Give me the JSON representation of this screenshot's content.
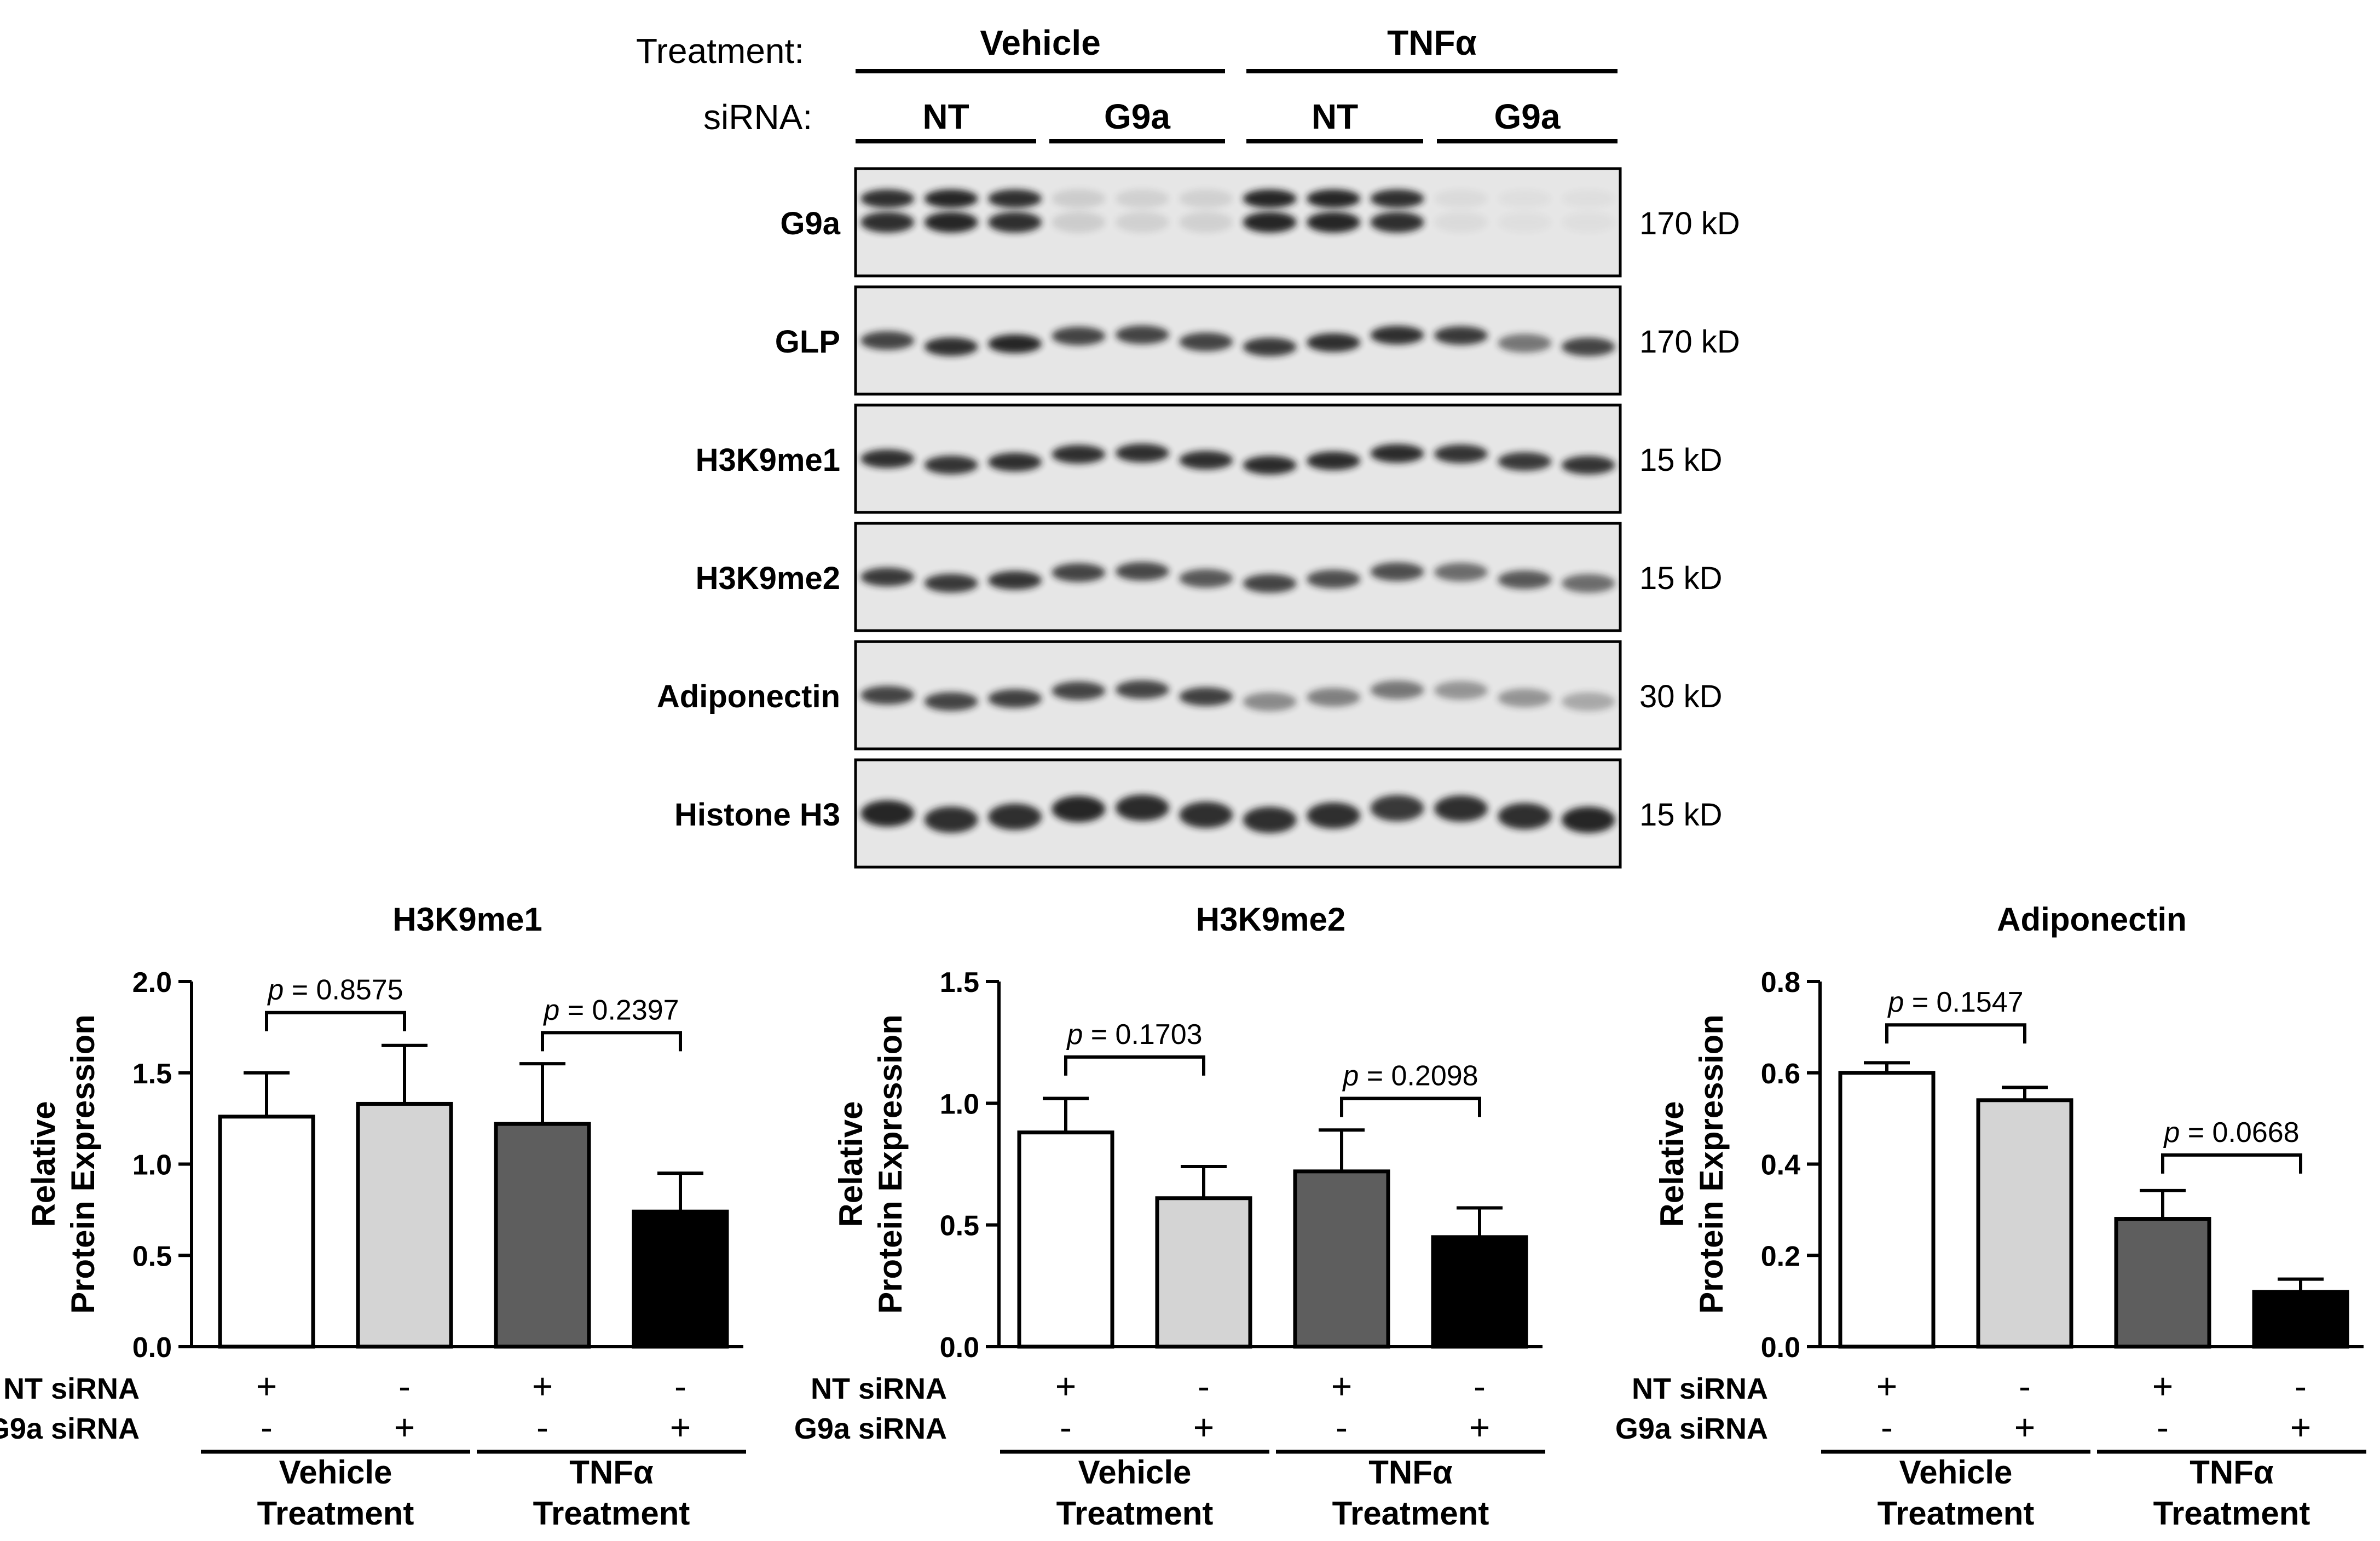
{
  "blot": {
    "treatment_label": "Treatment:",
    "sirna_label": "siRNA:",
    "treatments": [
      "Vehicle",
      "TNFα"
    ],
    "sirnas": [
      "NT",
      "G9a",
      "NT",
      "G9a"
    ],
    "rows": [
      {
        "name": "G9a",
        "size": "170 kD"
      },
      {
        "name": "GLP",
        "size": "170 kD"
      },
      {
        "name": "H3K9me1",
        "size": "15 kD"
      },
      {
        "name": "H3K9me2",
        "size": "15 kD"
      },
      {
        "name": "Adiponectin",
        "size": "30 kD"
      },
      {
        "name": "Histone H3",
        "size": "15 kD"
      }
    ],
    "intensities": [
      [
        0.9,
        0.95,
        0.9,
        0.12,
        0.1,
        0.1,
        0.95,
        0.95,
        0.9,
        0.05,
        0.03,
        0.03
      ],
      [
        0.8,
        0.9,
        0.95,
        0.8,
        0.8,
        0.8,
        0.85,
        0.9,
        0.9,
        0.85,
        0.55,
        0.8
      ],
      [
        0.9,
        0.88,
        0.9,
        0.9,
        0.9,
        0.9,
        0.92,
        0.92,
        0.92,
        0.88,
        0.85,
        0.88
      ],
      [
        0.85,
        0.85,
        0.88,
        0.8,
        0.78,
        0.7,
        0.8,
        0.75,
        0.75,
        0.6,
        0.7,
        0.6
      ],
      [
        0.8,
        0.8,
        0.82,
        0.8,
        0.8,
        0.82,
        0.45,
        0.5,
        0.55,
        0.4,
        0.4,
        0.3
      ],
      [
        0.95,
        0.9,
        0.9,
        0.95,
        0.92,
        0.9,
        0.9,
        0.9,
        0.85,
        0.9,
        0.9,
        0.95
      ]
    ]
  },
  "conditions": {
    "nt_label": "NT siRNA",
    "g9a_label": "G9a siRNA",
    "nt_signs": [
      "+",
      "-",
      "+",
      "-"
    ],
    "g9a_signs": [
      "-",
      "+",
      "-",
      "+"
    ],
    "groups": [
      {
        "line1": "Vehicle",
        "line2": "Treatment"
      },
      {
        "line1": "TNFα",
        "line2": "Treatment"
      }
    ]
  },
  "chart_data": [
    {
      "type": "bar",
      "title": "H3K9me1",
      "ylabel": [
        "Relative",
        "Protein Expression"
      ],
      "categories": [
        "NT siRNA + Vehicle",
        "G9a siRNA + Vehicle",
        "NT siRNA + TNFα",
        "G9a siRNA + TNFα"
      ],
      "values": [
        1.26,
        1.33,
        1.22,
        0.74
      ],
      "errors": [
        0.24,
        0.32,
        0.33,
        0.21
      ],
      "ylim": [
        0,
        2.0
      ],
      "yticks": [
        0.0,
        0.5,
        1.0,
        1.5,
        2.0
      ],
      "ytick_labels": [
        "0.0",
        "0.5",
        "1.0",
        "1.5",
        "2.0"
      ],
      "comparisons": [
        {
          "between": [
            0,
            1
          ],
          "p": "0.8575",
          "level": 1.83
        },
        {
          "between": [
            2,
            3
          ],
          "p": "0.2397",
          "level": 1.72
        }
      ]
    },
    {
      "type": "bar",
      "title": "H3K9me2",
      "ylabel": [
        "Relative",
        "Protein Expression"
      ],
      "categories": [
        "NT siRNA + Vehicle",
        "G9a siRNA + Vehicle",
        "NT siRNA + TNFα",
        "G9a siRNA + TNFα"
      ],
      "values": [
        0.88,
        0.61,
        0.72,
        0.45
      ],
      "errors": [
        0.14,
        0.13,
        0.17,
        0.12
      ],
      "ylim": [
        0,
        1.5
      ],
      "yticks": [
        0.0,
        0.5,
        1.0,
        1.5
      ],
      "ytick_labels": [
        "0.0",
        "0.5",
        "1.0",
        "1.5"
      ],
      "comparisons": [
        {
          "between": [
            0,
            1
          ],
          "p": "0.1703",
          "level": 1.19
        },
        {
          "between": [
            2,
            3
          ],
          "p": "0.2098",
          "level": 1.02
        }
      ]
    },
    {
      "type": "bar",
      "title": "Adiponectin",
      "ylabel": [
        "Relative",
        "Protein Expression"
      ],
      "categories": [
        "NT siRNA + Vehicle",
        "G9a siRNA + Vehicle",
        "NT siRNA + TNFα",
        "G9a siRNA + TNFα"
      ],
      "values": [
        0.6,
        0.54,
        0.28,
        0.12
      ],
      "errors": [
        0.022,
        0.028,
        0.062,
        0.028
      ],
      "ylim": [
        0,
        0.8
      ],
      "yticks": [
        0.0,
        0.2,
        0.4,
        0.6,
        0.8
      ],
      "ytick_labels": [
        "0.0",
        "0.2",
        "0.4",
        "0.6",
        "0.8"
      ],
      "comparisons": [
        {
          "between": [
            0,
            1
          ],
          "p": "0.1547",
          "level": 0.705
        },
        {
          "between": [
            2,
            3
          ],
          "p": "0.0668",
          "level": 0.42
        }
      ]
    }
  ],
  "colors": {
    "bars": [
      "#ffffff",
      "#d4d4d4",
      "#5e5e5e",
      "#000000"
    ],
    "blot_background": "#e6e6e6",
    "band": "#1a1a1a"
  }
}
